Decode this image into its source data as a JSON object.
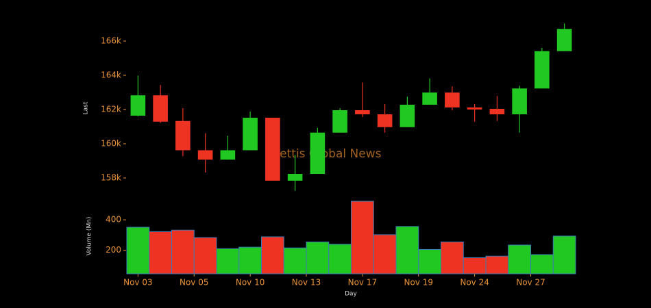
{
  "chart_data": {
    "type": "candlestick",
    "watermark": "Mettis Global News",
    "ylabel": "Last",
    "y2label": "Volume (Mn)",
    "xlabel": "Day",
    "open": [
      161640,
      162830,
      161330,
      159620,
      159070,
      159620,
      161520,
      157840,
      158240,
      160650,
      161960,
      161720,
      160970,
      162280,
      162990,
      162120,
      162040,
      161720,
      163230,
      165410
    ],
    "high": [
      163980,
      163430,
      162080,
      160610,
      160460,
      161880,
      161520,
      159350,
      160930,
      162080,
      163580,
      162320,
      162750,
      163820,
      163350,
      162320,
      162790,
      163390,
      165600,
      167030
    ],
    "low": [
      161600,
      161210,
      159270,
      158320,
      159070,
      159620,
      157840,
      157250,
      158240,
      160650,
      161560,
      160650,
      160970,
      162280,
      161960,
      161290,
      161330,
      160650,
      163230,
      165410
    ],
    "close": [
      162830,
      161290,
      159620,
      159070,
      159620,
      161520,
      157840,
      158240,
      160650,
      161960,
      161720,
      160970,
      162280,
      162990,
      162120,
      162000,
      161720,
      163230,
      165410,
      166710
    ],
    "volume": [
      351,
      322,
      332,
      283,
      210,
      220,
      288,
      215,
      254,
      239,
      522,
      302,
      356,
      205,
      254,
      151,
      161,
      234,
      171,
      293
    ],
    "up_color": "#22c822",
    "down_color": "#ee3322",
    "volume_edge_color": "#3a7ab8",
    "xlim": [
      -0.5,
      19.5
    ],
    "xticks": [
      {
        "value": 0,
        "label": "Nov 03"
      },
      {
        "value": 2.5,
        "label": "Nov 05"
      },
      {
        "value": 5,
        "label": "Nov 10"
      },
      {
        "value": 7.5,
        "label": "Nov 13"
      },
      {
        "value": 10,
        "label": "Nov 17"
      },
      {
        "value": 12.5,
        "label": "Nov 19"
      },
      {
        "value": 15,
        "label": "Nov 24"
      },
      {
        "value": 17.5,
        "label": "Nov 27"
      }
    ],
    "ylim": [
      157000,
      167200
    ],
    "yticks": [
      {
        "value": 158000,
        "label": "158k"
      },
      {
        "value": 160000,
        "label": "160k"
      },
      {
        "value": 162000,
        "label": "162k"
      },
      {
        "value": 164000,
        "label": "164k"
      },
      {
        "value": 166000,
        "label": "166k"
      }
    ],
    "y2lim": [
      45,
      540
    ],
    "y2ticks": [
      200,
      400
    ]
  }
}
